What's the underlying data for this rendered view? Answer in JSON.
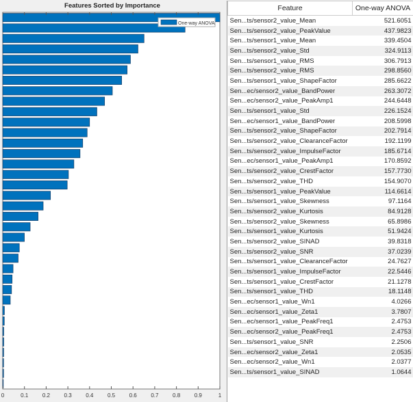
{
  "chart_data": {
    "type": "bar",
    "orientation": "horizontal",
    "title": "Features Sorted by Importance",
    "legend": {
      "entries": [
        "One-way ANOVA"
      ],
      "placement": "top-right"
    },
    "xlim": [
      0,
      1
    ],
    "xticks": [
      "0",
      "0.1",
      "0.2",
      "0.3",
      "0.4",
      "0.5",
      "0.6",
      "0.7",
      "0.8",
      "0.9",
      "1"
    ],
    "series": [
      {
        "name": "One-way ANOVA",
        "color": "#0072BD",
        "values": [
          1.0,
          0.8397,
          0.6508,
          0.6229,
          0.5882,
          0.573,
          0.5477,
          0.5048,
          0.469,
          0.4336,
          0.3999,
          0.3888,
          0.3683,
          0.356,
          0.3276,
          0.3025,
          0.297,
          0.2198,
          0.1862,
          0.1628,
          0.1263,
          0.0996,
          0.0764,
          0.071,
          0.0475,
          0.0432,
          0.0405,
          0.0347,
          0.0077,
          0.0072,
          0.0047,
          0.0047,
          0.0043,
          0.0039,
          0.0039,
          0.002
        ]
      }
    ]
  },
  "table": {
    "headers": [
      "Feature",
      "One-way ANOVA"
    ],
    "rows": [
      [
        "Sen...ts/sensor2_value_Mean",
        "521.6051"
      ],
      [
        "Sen...ts/sensor2_value_PeakValue",
        "437.9823"
      ],
      [
        "Sen...ts/sensor1_value_Mean",
        "339.4504"
      ],
      [
        "Sen...ts/sensor2_value_Std",
        "324.9113"
      ],
      [
        "Sen...ts/sensor1_value_RMS",
        "306.7913"
      ],
      [
        "Sen...ts/sensor2_value_RMS",
        "298.8560"
      ],
      [
        "Sen...ts/sensor1_value_ShapeFactor",
        "285.6622"
      ],
      [
        "Sen...ec/sensor2_value_BandPower",
        "263.3072"
      ],
      [
        "Sen...ec/sensor2_value_PeakAmp1",
        "244.6448"
      ],
      [
        "Sen...ts/sensor1_value_Std",
        "226.1524"
      ],
      [
        "Sen...ec/sensor1_value_BandPower",
        "208.5998"
      ],
      [
        "Sen...ts/sensor2_value_ShapeFactor",
        "202.7914"
      ],
      [
        "Sen...ts/sensor2_value_ClearanceFactor",
        "192.1199"
      ],
      [
        "Sen...ts/sensor2_value_ImpulseFactor",
        "185.6714"
      ],
      [
        "Sen...ec/sensor1_value_PeakAmp1",
        "170.8592"
      ],
      [
        "Sen...ts/sensor2_value_CrestFactor",
        "157.7730"
      ],
      [
        "Sen...ts/sensor2_value_THD",
        "154.9070"
      ],
      [
        "Sen...ts/sensor1_value_PeakValue",
        "114.6614"
      ],
      [
        "Sen...ts/sensor1_value_Skewness",
        "97.1164"
      ],
      [
        "Sen...ts/sensor2_value_Kurtosis",
        "84.9128"
      ],
      [
        "Sen...ts/sensor2_value_Skewness",
        "65.8986"
      ],
      [
        "Sen...ts/sensor1_value_Kurtosis",
        "51.9424"
      ],
      [
        "Sen...ts/sensor2_value_SINAD",
        "39.8318"
      ],
      [
        "Sen...ts/sensor2_value_SNR",
        "37.0239"
      ],
      [
        "Sen...ts/sensor1_value_ClearanceFactor",
        "24.7627"
      ],
      [
        "Sen...ts/sensor1_value_ImpulseFactor",
        "22.5446"
      ],
      [
        "Sen...ts/sensor1_value_CrestFactor",
        "21.1278"
      ],
      [
        "Sen...ts/sensor1_value_THD",
        "18.1148"
      ],
      [
        "Sen...ec/sensor1_value_Wn1",
        "4.0266"
      ],
      [
        "Sen...ec/sensor1_value_Zeta1",
        "3.7807"
      ],
      [
        "Sen...ec/sensor1_value_PeakFreq1",
        "2.4753"
      ],
      [
        "Sen...ec/sensor2_value_PeakFreq1",
        "2.4753"
      ],
      [
        "Sen...ts/sensor1_value_SNR",
        "2.2506"
      ],
      [
        "Sen...ec/sensor2_value_Zeta1",
        "2.0535"
      ],
      [
        "Sen...ec/sensor2_value_Wn1",
        "2.0377"
      ],
      [
        "Sen...ts/sensor1_value_SINAD",
        "1.0644"
      ]
    ]
  }
}
